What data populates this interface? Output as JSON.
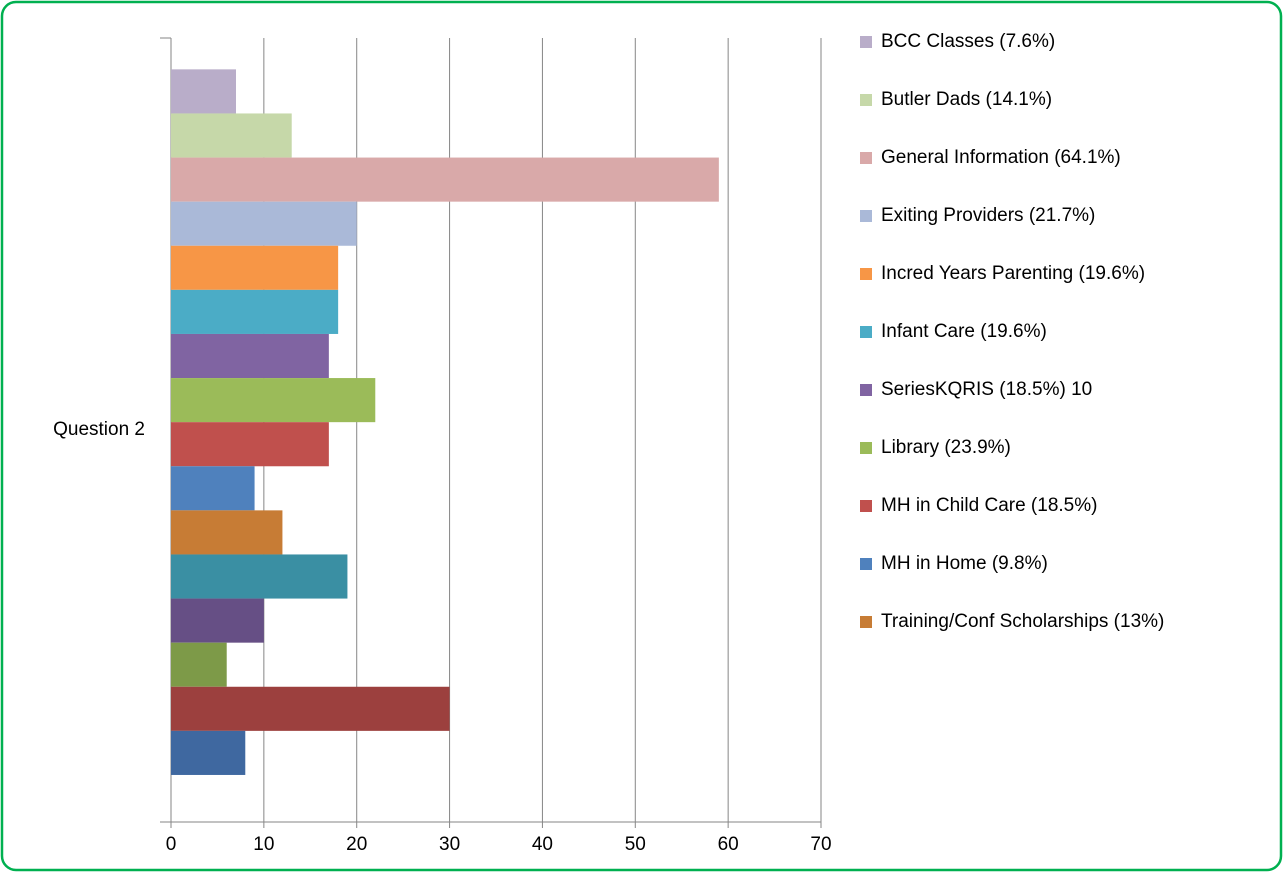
{
  "chart_data": {
    "type": "bar",
    "orientation": "horizontal",
    "categories": [
      "Question 2"
    ],
    "xlim": [
      0,
      70
    ],
    "xticks": [
      0,
      10,
      20,
      30,
      40,
      50,
      60,
      70
    ],
    "grid": true,
    "legend": "right",
    "series": [
      {
        "name": "BCC Classes (7.6%)",
        "color": "#b9adc9",
        "values": [
          7
        ]
      },
      {
        "name": "Butler Dads (14.1%)",
        "color": "#c6d8a9",
        "values": [
          13
        ]
      },
      {
        "name": "General Information (64.1%)",
        "color": "#d9a9a9",
        "values": [
          59
        ]
      },
      {
        "name": "Exiting Providers (21.7%)",
        "color": "#aab9d8",
        "values": [
          20
        ]
      },
      {
        "name": "Incred Years Parenting (19.6%)",
        "color": "#f79646",
        "values": [
          18
        ]
      },
      {
        "name": "Infant Care (19.6%)",
        "color": "#4bacc6",
        "values": [
          18
        ]
      },
      {
        "name": "SeriesKQRIS (18.5%) 10",
        "color": "#8064a2",
        "values": [
          17
        ]
      },
      {
        "name": "Library (23.9%)",
        "color": "#9bbb59",
        "values": [
          22
        ]
      },
      {
        "name": "MH in Child Care (18.5%)",
        "color": "#c0504d",
        "values": [
          17
        ]
      },
      {
        "name": "MH in Home (9.8%)",
        "color": "#4f81bd",
        "values": [
          9
        ]
      },
      {
        "name": "Training/Conf Scholarships (13%)",
        "color": "#c77c35",
        "values": [
          12
        ]
      },
      {
        "name": null,
        "color": "#3a8fa3",
        "values": [
          19
        ]
      },
      {
        "name": null,
        "color": "#664f85",
        "values": [
          10
        ]
      },
      {
        "name": null,
        "color": "#7d9a48",
        "values": [
          6
        ]
      },
      {
        "name": null,
        "color": "#9c403e",
        "values": [
          30
        ]
      },
      {
        "name": null,
        "color": "#3f68a0",
        "values": [
          8
        ]
      }
    ]
  }
}
